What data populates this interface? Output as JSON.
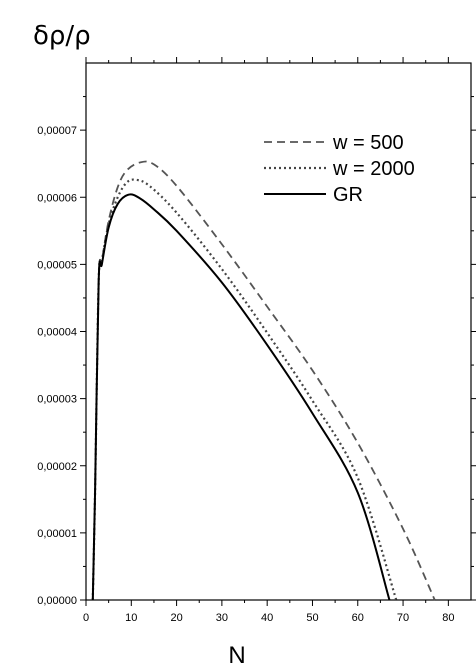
{
  "chart_data": {
    "type": "line",
    "ylabel": "δρ/ρ",
    "xlabel": "N",
    "xlim": [
      0,
      85
    ],
    "ylim": [
      0,
      8e-05
    ],
    "x_ticks": [
      0,
      10,
      20,
      30,
      40,
      50,
      60,
      70,
      80
    ],
    "x_tick_labels": [
      "0",
      "10",
      "20",
      "30",
      "40",
      "50",
      "60",
      "70",
      "80"
    ],
    "y_ticks": [
      0,
      1e-05,
      2e-05,
      3e-05,
      4e-05,
      5e-05,
      6e-05,
      7e-05
    ],
    "y_tick_labels": [
      "0,00000",
      "0,00001",
      "0,00002",
      "0,00003",
      "0,00004",
      "0,00005",
      "0,00006",
      "0,00007"
    ],
    "grid": false,
    "legend_position": "top-right",
    "series": [
      {
        "name": "w = 500",
        "style": "dashed",
        "color": "#555555",
        "x": [
          1.5,
          2,
          2.8,
          3.5,
          5,
          7,
          9,
          12,
          15,
          20,
          30,
          40,
          50,
          60,
          70,
          77
        ],
        "y": [
          0.0,
          1.6e-05,
          4.75e-05,
          5.05e-05,
          5.65e-05,
          6.15e-05,
          6.4e-05,
          6.52e-05,
          6.49e-05,
          6.17e-05,
          5.3e-05,
          4.37e-05,
          3.42e-05,
          2.34e-05,
          1.06e-05,
          0.0
        ]
      },
      {
        "name": "w = 2000",
        "style": "dotted",
        "color": "#444444",
        "x": [
          1.5,
          2,
          2.8,
          3.5,
          5,
          7,
          9,
          11,
          14,
          20,
          30,
          40,
          50,
          60,
          68.5
        ],
        "y": [
          0.0,
          1.6e-05,
          4.75e-05,
          5.05e-05,
          5.6e-05,
          6e-05,
          6.22e-05,
          6.26e-05,
          6.17e-05,
          5.77e-05,
          4.93e-05,
          3.98e-05,
          2.97e-05,
          1.82e-05,
          0.0
        ]
      },
      {
        "name": "GR",
        "style": "solid",
        "color": "#000000",
        "x": [
          1.5,
          2,
          2.8,
          3.5,
          5,
          7,
          9.5,
          12,
          15,
          20,
          30,
          40,
          50,
          60,
          67
        ],
        "y": [
          0.0,
          1.6e-05,
          4.75e-05,
          5e-05,
          5.55e-05,
          5.9e-05,
          6.04e-05,
          5.98e-05,
          5.82e-05,
          5.5e-05,
          4.73e-05,
          3.8e-05,
          2.78e-05,
          1.6e-05,
          0.0
        ]
      }
    ]
  }
}
